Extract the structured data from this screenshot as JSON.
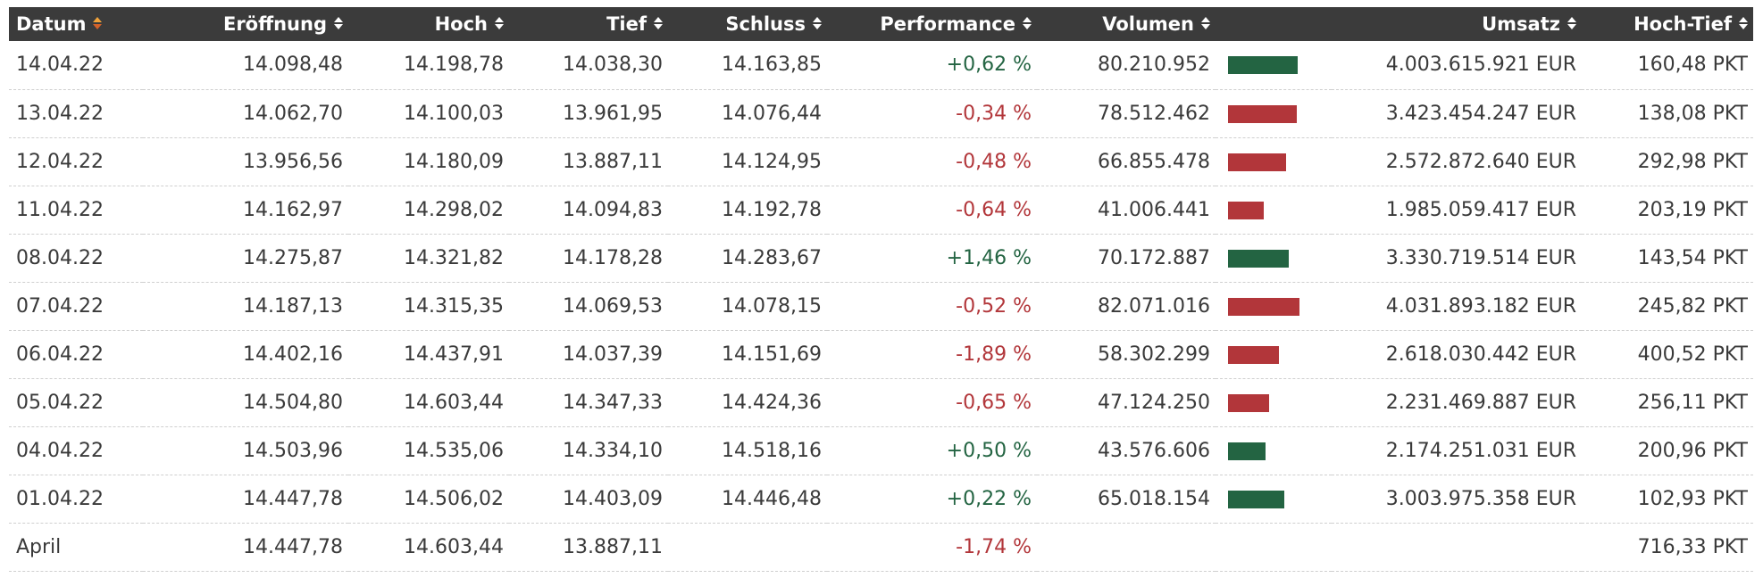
{
  "table": {
    "headers": [
      "Datum",
      "Eröffnung",
      "Hoch",
      "Tief",
      "Schluss",
      "Performance",
      "Volumen",
      "",
      "Umsatz",
      "Hoch-Tief"
    ],
    "sorted_column": "Datum",
    "colors": {
      "header_bg": "#3b3b3b",
      "positive": "#236442",
      "negative": "#b2363a",
      "sort_active": "#f1a33b"
    },
    "rows": [
      {
        "datum": "14.04.22",
        "eroeffnung": "14.098,48",
        "hoch": "14.198,78",
        "tief": "14.038,30",
        "schluss": "14.163,85",
        "performance": "+0,62 %",
        "trend": "up",
        "volumen": "80.210.952",
        "volumen_share": 0.977,
        "umsatz": "4.003.615.921 EUR",
        "hochtief": "160,48 PKT"
      },
      {
        "datum": "13.04.22",
        "eroeffnung": "14.062,70",
        "hoch": "14.100,03",
        "tief": "13.961,95",
        "schluss": "14.076,44",
        "performance": "-0,34 %",
        "trend": "down",
        "volumen": "78.512.462",
        "volumen_share": 0.957,
        "umsatz": "3.423.454.247 EUR",
        "hochtief": "138,08 PKT"
      },
      {
        "datum": "12.04.22",
        "eroeffnung": "13.956,56",
        "hoch": "14.180,09",
        "tief": "13.887,11",
        "schluss": "14.124,95",
        "performance": "-0,48 %",
        "trend": "down",
        "volumen": "66.855.478",
        "volumen_share": 0.815,
        "umsatz": "2.572.872.640 EUR",
        "hochtief": "292,98 PKT"
      },
      {
        "datum": "11.04.22",
        "eroeffnung": "14.162,97",
        "hoch": "14.298,02",
        "tief": "14.094,83",
        "schluss": "14.192,78",
        "performance": "-0,64 %",
        "trend": "down",
        "volumen": "41.006.441",
        "volumen_share": 0.5,
        "umsatz": "1.985.059.417 EUR",
        "hochtief": "203,19 PKT"
      },
      {
        "datum": "08.04.22",
        "eroeffnung": "14.275,87",
        "hoch": "14.321,82",
        "tief": "14.178,28",
        "schluss": "14.283,67",
        "performance": "+1,46 %",
        "trend": "up",
        "volumen": "70.172.887",
        "volumen_share": 0.855,
        "umsatz": "3.330.719.514 EUR",
        "hochtief": "143,54 PKT"
      },
      {
        "datum": "07.04.22",
        "eroeffnung": "14.187,13",
        "hoch": "14.315,35",
        "tief": "14.069,53",
        "schluss": "14.078,15",
        "performance": "-0,52 %",
        "trend": "down",
        "volumen": "82.071.016",
        "volumen_share": 1.0,
        "umsatz": "4.031.893.182 EUR",
        "hochtief": "245,82 PKT"
      },
      {
        "datum": "06.04.22",
        "eroeffnung": "14.402,16",
        "hoch": "14.437,91",
        "tief": "14.037,39",
        "schluss": "14.151,69",
        "performance": "-1,89 %",
        "trend": "down",
        "volumen": "58.302.299",
        "volumen_share": 0.71,
        "umsatz": "2.618.030.442 EUR",
        "hochtief": "400,52 PKT"
      },
      {
        "datum": "05.04.22",
        "eroeffnung": "14.504,80",
        "hoch": "14.603,44",
        "tief": "14.347,33",
        "schluss": "14.424,36",
        "performance": "-0,65 %",
        "trend": "down",
        "volumen": "47.124.250",
        "volumen_share": 0.574,
        "umsatz": "2.231.469.887 EUR",
        "hochtief": "256,11 PKT"
      },
      {
        "datum": "04.04.22",
        "eroeffnung": "14.503,96",
        "hoch": "14.535,06",
        "tief": "14.334,10",
        "schluss": "14.518,16",
        "performance": "+0,50 %",
        "trend": "up",
        "volumen": "43.576.606",
        "volumen_share": 0.531,
        "umsatz": "2.174.251.031 EUR",
        "hochtief": "200,96 PKT"
      },
      {
        "datum": "01.04.22",
        "eroeffnung": "14.447,78",
        "hoch": "14.506,02",
        "tief": "14.403,09",
        "schluss": "14.446,48",
        "performance": "+0,22 %",
        "trend": "up",
        "volumen": "65.018.154",
        "volumen_share": 0.792,
        "umsatz": "3.003.975.358 EUR",
        "hochtief": "102,93 PKT"
      }
    ],
    "summary": {
      "datum": "April",
      "eroeffnung": "14.447,78",
      "hoch": "14.603,44",
      "tief": "13.887,11",
      "schluss": "",
      "performance": "-1,74 %",
      "trend": "down",
      "volumen": "",
      "umsatz": "",
      "hochtief": "716,33 PKT"
    }
  }
}
